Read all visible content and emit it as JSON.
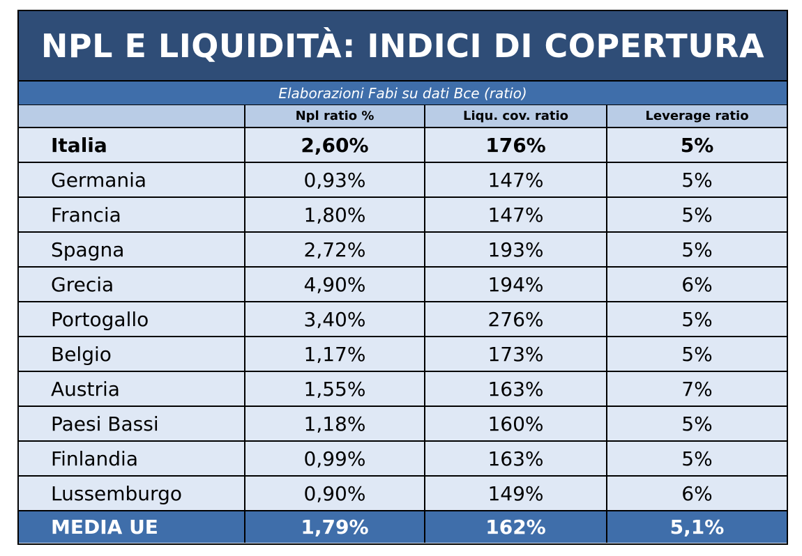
{
  "title": "NPL E LIQUIDITÀ: INDICI DI COPERTURA",
  "subtitle": "Elaborazioni Fabi su dati Bce (ratio)",
  "columns": [
    "",
    "Npl ratio %",
    "Liqu. cov. ratio",
    "Leverage ratio"
  ],
  "rows": [
    {
      "country": "Italia",
      "npl": "2,60%",
      "lcr": "176%",
      "leverage": "5%"
    },
    {
      "country": "Germania",
      "npl": "0,93%",
      "lcr": "147%",
      "leverage": "5%"
    },
    {
      "country": "Francia",
      "npl": "1,80%",
      "lcr": "147%",
      "leverage": "5%"
    },
    {
      "country": "Spagna",
      "npl": "2,72%",
      "lcr": "193%",
      "leverage": "5%"
    },
    {
      "country": "Grecia",
      "npl": "4,90%",
      "lcr": "194%",
      "leverage": "6%"
    },
    {
      "country": "Portogallo",
      "npl": "3,40%",
      "lcr": "276%",
      "leverage": "5%"
    },
    {
      "country": "Belgio",
      "npl": "1,17%",
      "lcr": "173%",
      "leverage": "5%"
    },
    {
      "country": "Austria",
      "npl": "1,55%",
      "lcr": "163%",
      "leverage": "7%"
    },
    {
      "country": "Paesi Bassi",
      "npl": "1,18%",
      "lcr": "160%",
      "leverage": "5%"
    },
    {
      "country": "Finlandia",
      "npl": "0,99%",
      "lcr": "163%",
      "leverage": "5%"
    },
    {
      "country": "Lussemburgo",
      "npl": "0,90%",
      "lcr": "149%",
      "leverage": "6%"
    }
  ],
  "footer": {
    "country": "MEDIA UE",
    "npl": "1,79%",
    "lcr": "162%",
    "leverage": "5,1%"
  },
  "colors": {
    "title_bg": "#2f4d77",
    "subtitle_bg": "#3f6eaa",
    "header_bg": "#b9cce6",
    "body_bg": "#dfe8f5"
  }
}
